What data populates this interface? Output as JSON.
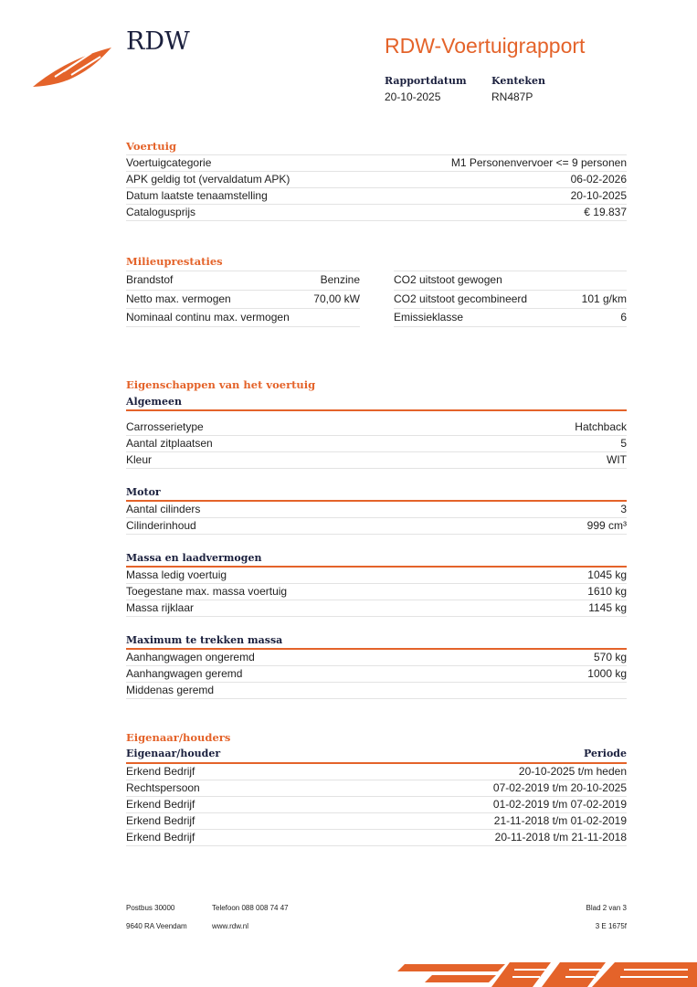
{
  "header": {
    "logo": "RDW",
    "title": "RDW-Voertuigrapport",
    "fields": [
      {
        "label": "Rapportdatum",
        "value": "20-10-2025"
      },
      {
        "label": "Kenteken",
        "value": "RN487P"
      }
    ]
  },
  "vehicle": {
    "title": "Voertuig",
    "rows": [
      {
        "label": "Voertuigcategorie",
        "value": "M1 Personenvervoer <= 9 personen"
      },
      {
        "label": "APK geldig tot (vervaldatum APK)",
        "value": "06-02-2026"
      },
      {
        "label": "Datum laatste tenaamstelling",
        "value": "20-10-2025"
      },
      {
        "label": "Catalogusprijs",
        "value": "€ 19.837"
      }
    ]
  },
  "environment": {
    "title": "Milieuprestaties",
    "rows": [
      {
        "label": "Brandstof",
        "value": "Benzine",
        "label2": "CO2 uitstoot gewogen"
      },
      {
        "label": "Netto max. vermogen",
        "value": "70,00 kW",
        "label2": "CO2 uitstoot gecombineerd",
        "value2": "101 g/km"
      },
      {
        "label": "Nominaal continu max. vermogen",
        "label2": "Emissieklasse",
        "value2": "6"
      }
    ]
  },
  "properties": {
    "title": "Eigenschappen van het voertuig",
    "groups": [
      {
        "title": "Algemeen",
        "rows": [
          {
            "label": "Carrosserietype",
            "value": "Hatchback"
          },
          {
            "label": "Aantal zitplaatsen",
            "value": "5"
          },
          {
            "label": "Kleur",
            "value": "WIT"
          }
        ]
      },
      {
        "title": "Motor",
        "rows": [
          {
            "label": "Aantal cilinders",
            "value": "3"
          },
          {
            "label": "Cilinderinhoud",
            "value": "999 cm³"
          }
        ]
      },
      {
        "title": "Massa en laadvermogen",
        "rows": [
          {
            "label": "Massa ledig voertuig",
            "value": "1045 kg"
          },
          {
            "label": "Toegestane max. massa voertuig",
            "value": "1610 kg"
          },
          {
            "label": "Massa rijklaar",
            "value": "1145 kg"
          }
        ]
      },
      {
        "title": "Maximum te trekken massa",
        "rows": [
          {
            "label": "Aanhangwagen ongeremd",
            "value": "570 kg"
          },
          {
            "label": "Aanhangwagen geremd",
            "value": "1000 kg"
          },
          {
            "label": "Middenas geremd"
          }
        ]
      }
    ]
  },
  "owners": {
    "title": "Eigenaar/houders",
    "columns": [
      "Eigenaar/houder",
      "Periode"
    ],
    "rows": [
      {
        "owner": "Erkend Bedrijf",
        "period": "20-10-2025 t/m heden"
      },
      {
        "owner": "Rechtspersoon",
        "period": "07-02-2019 t/m 20-10-2025"
      },
      {
        "owner": "Erkend Bedrijf",
        "period": "01-02-2019 t/m 07-02-2019"
      },
      {
        "owner": "Erkend Bedrijf",
        "period": "21-11-2018 t/m 01-02-2019"
      },
      {
        "owner": "Erkend Bedrijf",
        "period": "20-11-2018 t/m 21-11-2018"
      }
    ]
  },
  "footer": {
    "left": [
      "Postbus 30000",
      "9640 RA Veendam"
    ],
    "middle": [
      "Telefoon 088 008 74 47",
      "www.rdw.nl"
    ],
    "right": [
      "Blad 2 van 3",
      "3 E 1675f"
    ]
  }
}
